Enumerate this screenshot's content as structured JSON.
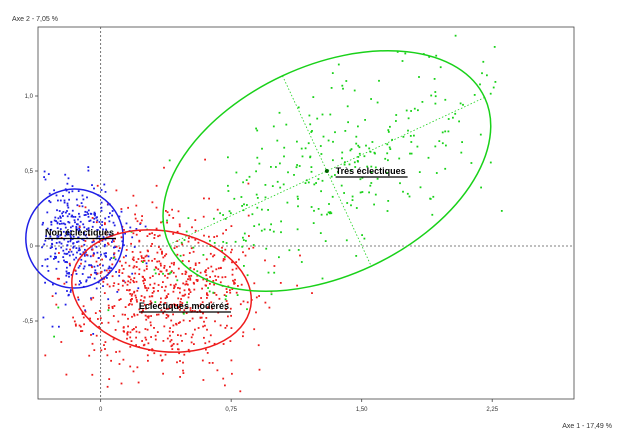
{
  "chart_data": {
    "type": "scatter",
    "title": "",
    "xlabel": "Axe 1 - 17,49 %",
    "ylabel": "Axe 2 - 7,05 %",
    "xlim": [
      -0.36,
      2.72
    ],
    "ylim": [
      -1.02,
      1.46
    ],
    "x_ticks": [
      0,
      0.75,
      1.5,
      2.25
    ],
    "x_tick_labels": [
      "0",
      "0,75",
      "1,50",
      "2,25"
    ],
    "y_ticks": [
      -0.5,
      0,
      0.5,
      1.0
    ],
    "y_tick_labels": [
      "-0,5",
      "0",
      "0,5",
      "1,0"
    ],
    "grid": false,
    "colors": {
      "non": "#1f1fe6",
      "moderes": "#ee1c1c",
      "tres": "#19d119",
      "axis": "#555555"
    },
    "series": [
      {
        "name": "Non éclectiques",
        "color": "#1f1fe6",
        "center": [
          -0.15,
          0.05
        ],
        "spread": [
          0.15,
          0.19
        ],
        "count": 420
      },
      {
        "name": "Eclectiques modérés",
        "color": "#ee1c1c",
        "center": [
          0.35,
          -0.3
        ],
        "spread": [
          0.27,
          0.28
        ],
        "count": 720
      },
      {
        "name": "Très éclectiques",
        "color": "#19d119",
        "center": [
          1.3,
          0.5
        ],
        "spread": [
          0.55,
          0.37
        ],
        "count": 330
      }
    ],
    "ellipses": [
      {
        "series": "Non éclectiques",
        "color": "#1f1fe6",
        "center": [
          -0.15,
          0.05
        ],
        "rx": 0.28,
        "ry": 0.33,
        "angle": 0
      },
      {
        "series": "Eclectiques modérés",
        "color": "#ee1c1c",
        "center": [
          0.35,
          -0.3
        ],
        "rx": 0.52,
        "ry": 0.4,
        "angle": -10
      },
      {
        "series": "Très éclectiques",
        "color": "#19d119",
        "center": [
          1.3,
          0.5
        ],
        "rx": 1.0,
        "ry": 0.7,
        "angle": 25
      }
    ],
    "labels": [
      {
        "text": "Très éclectiques",
        "x": 1.35,
        "y": 0.48,
        "anchor": "start"
      },
      {
        "text": "Non éclectiques",
        "x": -0.32,
        "y": 0.07,
        "anchor": "start"
      },
      {
        "text": "Eclectiques modérés",
        "x": 0.22,
        "y": -0.42,
        "anchor": "start"
      }
    ]
  }
}
